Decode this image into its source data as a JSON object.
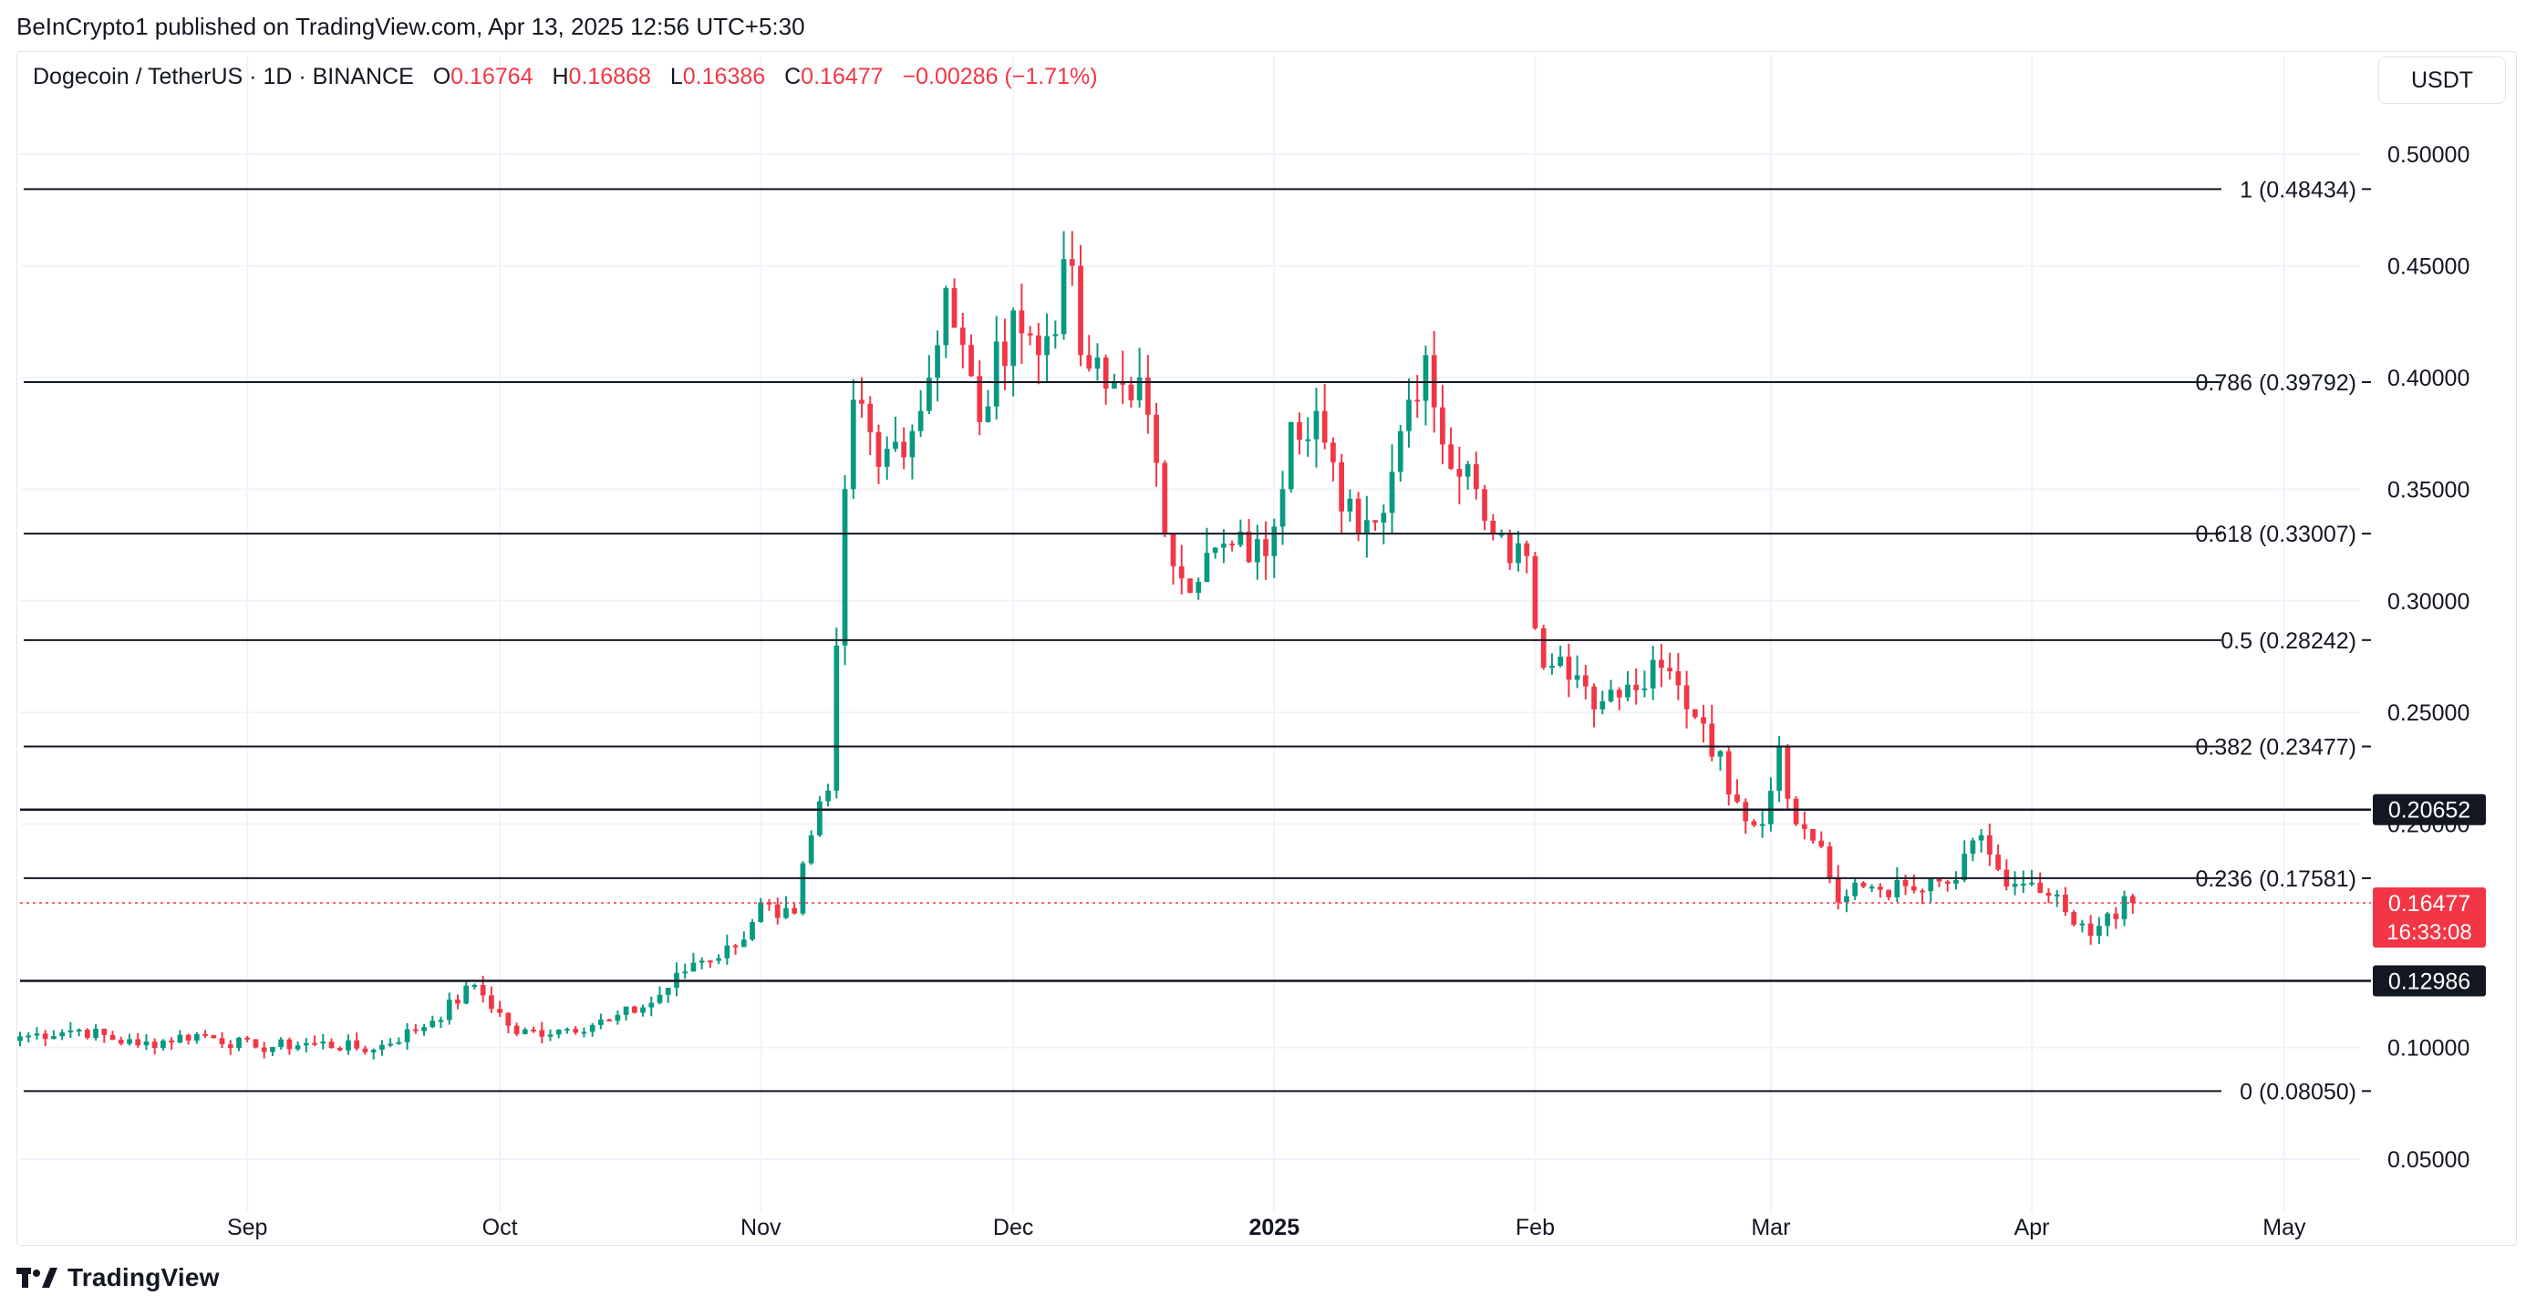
{
  "publisher": "BeInCrypto1 published on TradingView.com, Apr 13, 2025 12:56 UTC+5:30",
  "legend": {
    "symbol": "Dogecoin / TetherUS · 1D · BINANCE",
    "o_label": "O",
    "o_value": "0.16764",
    "h_label": "H",
    "h_value": "0.16868",
    "l_label": "L",
    "l_value": "0.16386",
    "c_label": "C",
    "c_value": "0.16477",
    "change": "−0.00286 (−1.71%)"
  },
  "currency": "USDT",
  "footer_brand": "TradingView",
  "colors": {
    "up": "#089981",
    "down": "#f23645",
    "grid": "#f0f3fa",
    "line": "#131722"
  },
  "chart_data": {
    "type": "candlestick",
    "y_ticks": [
      "0.50000",
      "0.45000",
      "0.40000",
      "0.35000",
      "0.30000",
      "0.25000",
      "0.20000",
      "0.10000",
      "0.05000"
    ],
    "x_ticks": [
      {
        "date": "2024-09-01",
        "label": "Sep",
        "bold": false
      },
      {
        "date": "2024-10-01",
        "label": "Oct",
        "bold": false
      },
      {
        "date": "2024-11-01",
        "label": "Nov",
        "bold": false
      },
      {
        "date": "2024-12-01",
        "label": "Dec",
        "bold": false
      },
      {
        "date": "2025-01-01",
        "label": "2025",
        "bold": true
      },
      {
        "date": "2025-02-01",
        "label": "Feb",
        "bold": false
      },
      {
        "date": "2025-03-01",
        "label": "Mar",
        "bold": false
      },
      {
        "date": "2025-04-01",
        "label": "Apr",
        "bold": false
      },
      {
        "date": "2025-05-01",
        "label": "May",
        "bold": false
      }
    ],
    "ylim": [
      0.03,
      0.52
    ],
    "xlim": [
      "2024-08-05",
      "2025-05-10"
    ],
    "fib_levels": [
      {
        "value": 0.48434,
        "label": "1 (0.48434)"
      },
      {
        "value": 0.39792,
        "label": "0.786 (0.39792)"
      },
      {
        "value": 0.33007,
        "label": "0.618 (0.33007)"
      },
      {
        "value": 0.28242,
        "label": "0.5 (0.28242)"
      },
      {
        "value": 0.23477,
        "label": "0.382 (0.23477)"
      },
      {
        "value": 0.17581,
        "label": "0.236 (0.17581)"
      },
      {
        "value": 0.0805,
        "label": "0 (0.08050)"
      }
    ],
    "horizontal_lines": [
      {
        "value": 0.20652,
        "label": "0.20652"
      },
      {
        "value": 0.12986,
        "label": "0.12986"
      }
    ],
    "last_price": {
      "value": 0.16477,
      "label": "0.16477",
      "countdown": "16:33:08"
    },
    "anchors": [
      {
        "date": "2024-08-05",
        "price": 0.105
      },
      {
        "date": "2024-08-12",
        "price": 0.108
      },
      {
        "date": "2024-08-19",
        "price": 0.101
      },
      {
        "date": "2024-08-26",
        "price": 0.106
      },
      {
        "date": "2024-09-02",
        "price": 0.1
      },
      {
        "date": "2024-09-09",
        "price": 0.102
      },
      {
        "date": "2024-09-16",
        "price": 0.099
      },
      {
        "date": "2024-09-23",
        "price": 0.112
      },
      {
        "date": "2024-09-28",
        "price": 0.128
      },
      {
        "date": "2024-10-03",
        "price": 0.106
      },
      {
        "date": "2024-10-08",
        "price": 0.108
      },
      {
        "date": "2024-10-14",
        "price": 0.112
      },
      {
        "date": "2024-10-19",
        "price": 0.12
      },
      {
        "date": "2024-10-24",
        "price": 0.138
      },
      {
        "date": "2024-10-29",
        "price": 0.145
      },
      {
        "date": "2024-11-01",
        "price": 0.165
      },
      {
        "date": "2024-11-03",
        "price": 0.158
      },
      {
        "date": "2024-11-05",
        "price": 0.16
      },
      {
        "date": "2024-11-07",
        "price": 0.195
      },
      {
        "date": "2024-11-09",
        "price": 0.215
      },
      {
        "date": "2024-11-10",
        "price": 0.28
      },
      {
        "date": "2024-11-11",
        "price": 0.35
      },
      {
        "date": "2024-11-12",
        "price": 0.39
      },
      {
        "date": "2024-11-15",
        "price": 0.36
      },
      {
        "date": "2024-11-20",
        "price": 0.385
      },
      {
        "date": "2024-11-23",
        "price": 0.44
      },
      {
        "date": "2024-11-27",
        "price": 0.38
      },
      {
        "date": "2024-12-01",
        "price": 0.43
      },
      {
        "date": "2024-12-04",
        "price": 0.41
      },
      {
        "date": "2024-12-08",
        "price": 0.45
      },
      {
        "date": "2024-12-09",
        "price": 0.41
      },
      {
        "date": "2024-12-12",
        "price": 0.395
      },
      {
        "date": "2024-12-16",
        "price": 0.4
      },
      {
        "date": "2024-12-19",
        "price": 0.33
      },
      {
        "date": "2024-12-21",
        "price": 0.31
      },
      {
        "date": "2024-12-27",
        "price": 0.325
      },
      {
        "date": "2024-12-31",
        "price": 0.32
      },
      {
        "date": "2025-01-03",
        "price": 0.38
      },
      {
        "date": "2025-01-06",
        "price": 0.385
      },
      {
        "date": "2025-01-09",
        "price": 0.34
      },
      {
        "date": "2025-01-13",
        "price": 0.335
      },
      {
        "date": "2025-01-17",
        "price": 0.39
      },
      {
        "date": "2025-01-19",
        "price": 0.41
      },
      {
        "date": "2025-01-21",
        "price": 0.37
      },
      {
        "date": "2025-01-25",
        "price": 0.35
      },
      {
        "date": "2025-01-28",
        "price": 0.33
      },
      {
        "date": "2025-01-31",
        "price": 0.32
      },
      {
        "date": "2025-02-02",
        "price": 0.27
      },
      {
        "date": "2025-02-04",
        "price": 0.275
      },
      {
        "date": "2025-02-09",
        "price": 0.255
      },
      {
        "date": "2025-02-13",
        "price": 0.26
      },
      {
        "date": "2025-02-16",
        "price": 0.27
      },
      {
        "date": "2025-02-21",
        "price": 0.245
      },
      {
        "date": "2025-02-25",
        "price": 0.21
      },
      {
        "date": "2025-02-28",
        "price": 0.2
      },
      {
        "date": "2025-03-02",
        "price": 0.235
      },
      {
        "date": "2025-03-04",
        "price": 0.2
      },
      {
        "date": "2025-03-07",
        "price": 0.19
      },
      {
        "date": "2025-03-09",
        "price": 0.165
      },
      {
        "date": "2025-03-12",
        "price": 0.172
      },
      {
        "date": "2025-03-19",
        "price": 0.17
      },
      {
        "date": "2025-03-23",
        "price": 0.175
      },
      {
        "date": "2025-03-26",
        "price": 0.195
      },
      {
        "date": "2025-03-29",
        "price": 0.172
      },
      {
        "date": "2025-04-03",
        "price": 0.168
      },
      {
        "date": "2025-04-06",
        "price": 0.155
      },
      {
        "date": "2025-04-08",
        "price": 0.15
      },
      {
        "date": "2025-04-10",
        "price": 0.16
      },
      {
        "date": "2025-04-13",
        "price": 0.16477
      }
    ]
  }
}
